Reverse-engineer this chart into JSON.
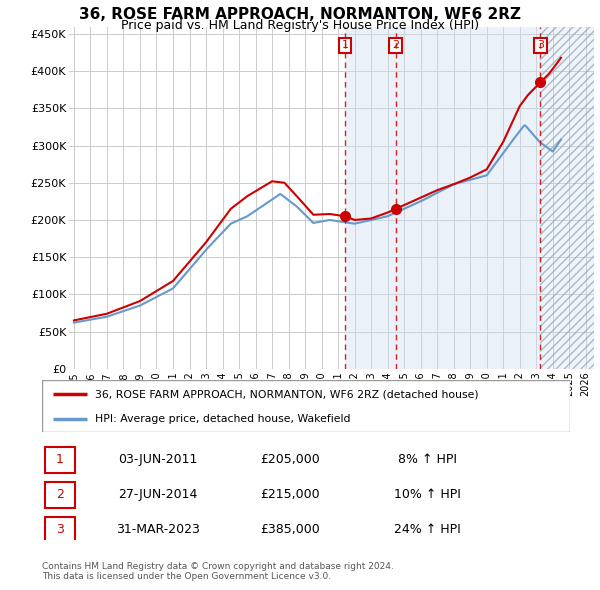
{
  "title": "36, ROSE FARM APPROACH, NORMANTON, WF6 2RZ",
  "subtitle": "Price paid vs. HM Land Registry's House Price Index (HPI)",
  "legend_line1": "36, ROSE FARM APPROACH, NORMANTON, WF6 2RZ (detached house)",
  "legend_line2": "HPI: Average price, detached house, Wakefield",
  "sale_color": "#cc0000",
  "hpi_color": "#6699cc",
  "transactions": [
    {
      "date": 2011.42,
      "price": 205000,
      "label": "1"
    },
    {
      "date": 2014.49,
      "price": 215000,
      "label": "2"
    },
    {
      "date": 2023.25,
      "price": 385000,
      "label": "3"
    }
  ],
  "transaction_dates_str": [
    "03-JUN-2011",
    "27-JUN-2014",
    "31-MAR-2023"
  ],
  "transaction_prices_str": [
    "£205,000",
    "£215,000",
    "£385,000"
  ],
  "transaction_hpi_str": [
    "8% ↑ HPI",
    "10% ↑ HPI",
    "24% ↑ HPI"
  ],
  "footer": "Contains HM Land Registry data © Crown copyright and database right 2024.\nThis data is licensed under the Open Government Licence v3.0.",
  "ylim": [
    0,
    460000
  ],
  "xlim": [
    1994.7,
    2026.5
  ],
  "yticks": [
    0,
    50000,
    100000,
    150000,
    200000,
    250000,
    300000,
    350000,
    400000,
    450000
  ],
  "ytick_labels": [
    "£0",
    "£50K",
    "£100K",
    "£150K",
    "£200K",
    "£250K",
    "£300K",
    "£350K",
    "£400K",
    "£450K"
  ],
  "xticks": [
    1995,
    1996,
    1997,
    1998,
    1999,
    2000,
    2001,
    2002,
    2003,
    2004,
    2005,
    2006,
    2007,
    2008,
    2009,
    2010,
    2011,
    2012,
    2013,
    2014,
    2015,
    2016,
    2017,
    2018,
    2019,
    2020,
    2021,
    2022,
    2023,
    2024,
    2025,
    2026
  ],
  "hpi_anchors_x": [
    1995.0,
    1997.0,
    1999.0,
    2001.0,
    2003.0,
    2004.5,
    2005.5,
    2007.5,
    2008.5,
    2009.5,
    2010.5,
    2012.0,
    2014.0,
    2016.0,
    2018.0,
    2020.0,
    2021.5,
    2022.3,
    2023.2,
    2024.0,
    2024.5
  ],
  "hpi_anchors_y": [
    62000,
    70000,
    85000,
    108000,
    160000,
    195000,
    205000,
    235000,
    218000,
    196000,
    200000,
    195000,
    205000,
    225000,
    248000,
    260000,
    305000,
    328000,
    305000,
    292000,
    308000
  ],
  "sale_anchors_x": [
    1995.0,
    1997.0,
    1999.0,
    2001.0,
    2003.0,
    2004.5,
    2005.5,
    2007.0,
    2007.75,
    2008.5,
    2009.5,
    2010.5,
    2011.42,
    2012.0,
    2013.0,
    2014.0,
    2014.49,
    2015.0,
    2016.0,
    2017.0,
    2018.0,
    2019.0,
    2020.0,
    2021.0,
    2022.0,
    2022.5,
    2023.25,
    2023.75,
    2024.0,
    2024.5
  ],
  "sale_anchors_y": [
    65000,
    74000,
    91000,
    118000,
    170000,
    215000,
    232000,
    252000,
    250000,
    232000,
    207000,
    208000,
    205000,
    200000,
    202000,
    210000,
    215000,
    220000,
    230000,
    240000,
    248000,
    257000,
    268000,
    305000,
    353000,
    368000,
    385000,
    396000,
    403000,
    418000
  ]
}
